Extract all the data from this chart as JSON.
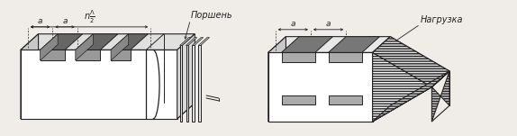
{
  "bg_color": "#f0ede8",
  "line_color": "#222222",
  "label1": "Поршень",
  "label2": "Нагрузка",
  "label_a": "a",
  "font_size": 6.5,
  "fig_width": 5.74,
  "fig_height": 1.51,
  "dpi": 100
}
